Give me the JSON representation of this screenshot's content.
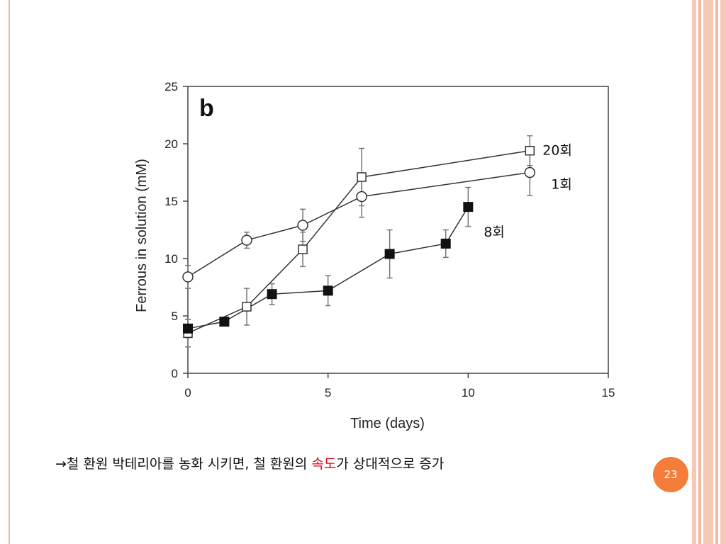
{
  "slide": {
    "caption_arrow": "→",
    "caption_before": "철 환원 박테리아를 농화 시키면, 철 환원의 ",
    "caption_highlight": "속도",
    "caption_after": "가 상대적으로 증가",
    "highlight_color": "#e0001b",
    "page_number": "23",
    "badge_color": "#f47d3a",
    "decor_color": "#f2b9a3"
  },
  "chart_data": {
    "type": "line",
    "panel_label": "b",
    "xlabel": "Time (days)",
    "ylabel": "Ferrous in solution (mM)",
    "xlim": [
      0,
      15
    ],
    "ylim": [
      0,
      25
    ],
    "xticks": [
      0,
      5,
      10,
      15
    ],
    "yticks": [
      0,
      5,
      10,
      15,
      20,
      25
    ],
    "grid": false,
    "series": [
      {
        "name": "20회",
        "marker": "open-square",
        "points": [
          {
            "x": 0,
            "y": 3.5,
            "err": 1.2
          },
          {
            "x": 2.1,
            "y": 5.8,
            "err": 1.6
          },
          {
            "x": 4.1,
            "y": 10.8,
            "err": 1.5
          },
          {
            "x": 6.2,
            "y": 17.1,
            "err": 2.5
          },
          {
            "x": 12.2,
            "y": 19.4,
            "err": 1.3
          }
        ]
      },
      {
        "name": "1회",
        "marker": "open-circle",
        "points": [
          {
            "x": 0,
            "y": 8.4,
            "err": 1.0
          },
          {
            "x": 2.1,
            "y": 11.6,
            "err": 0.7
          },
          {
            "x": 4.1,
            "y": 12.9,
            "err": 1.4
          },
          {
            "x": 6.2,
            "y": 15.4,
            "err": 1.8
          },
          {
            "x": 12.2,
            "y": 17.5,
            "err": 2.0
          }
        ]
      },
      {
        "name": "8회",
        "marker": "filled-square",
        "points": [
          {
            "x": 0,
            "y": 3.9,
            "err": 0.8
          },
          {
            "x": 1.3,
            "y": 4.5,
            "err": 0.3
          },
          {
            "x": 3.0,
            "y": 6.9,
            "err": 0.9
          },
          {
            "x": 5.0,
            "y": 7.2,
            "err": 1.3
          },
          {
            "x": 7.2,
            "y": 10.4,
            "err": 2.1
          },
          {
            "x": 9.2,
            "y": 11.3,
            "err": 1.2
          },
          {
            "x": 10.0,
            "y": 14.5,
            "err": 1.7
          }
        ]
      }
    ]
  }
}
